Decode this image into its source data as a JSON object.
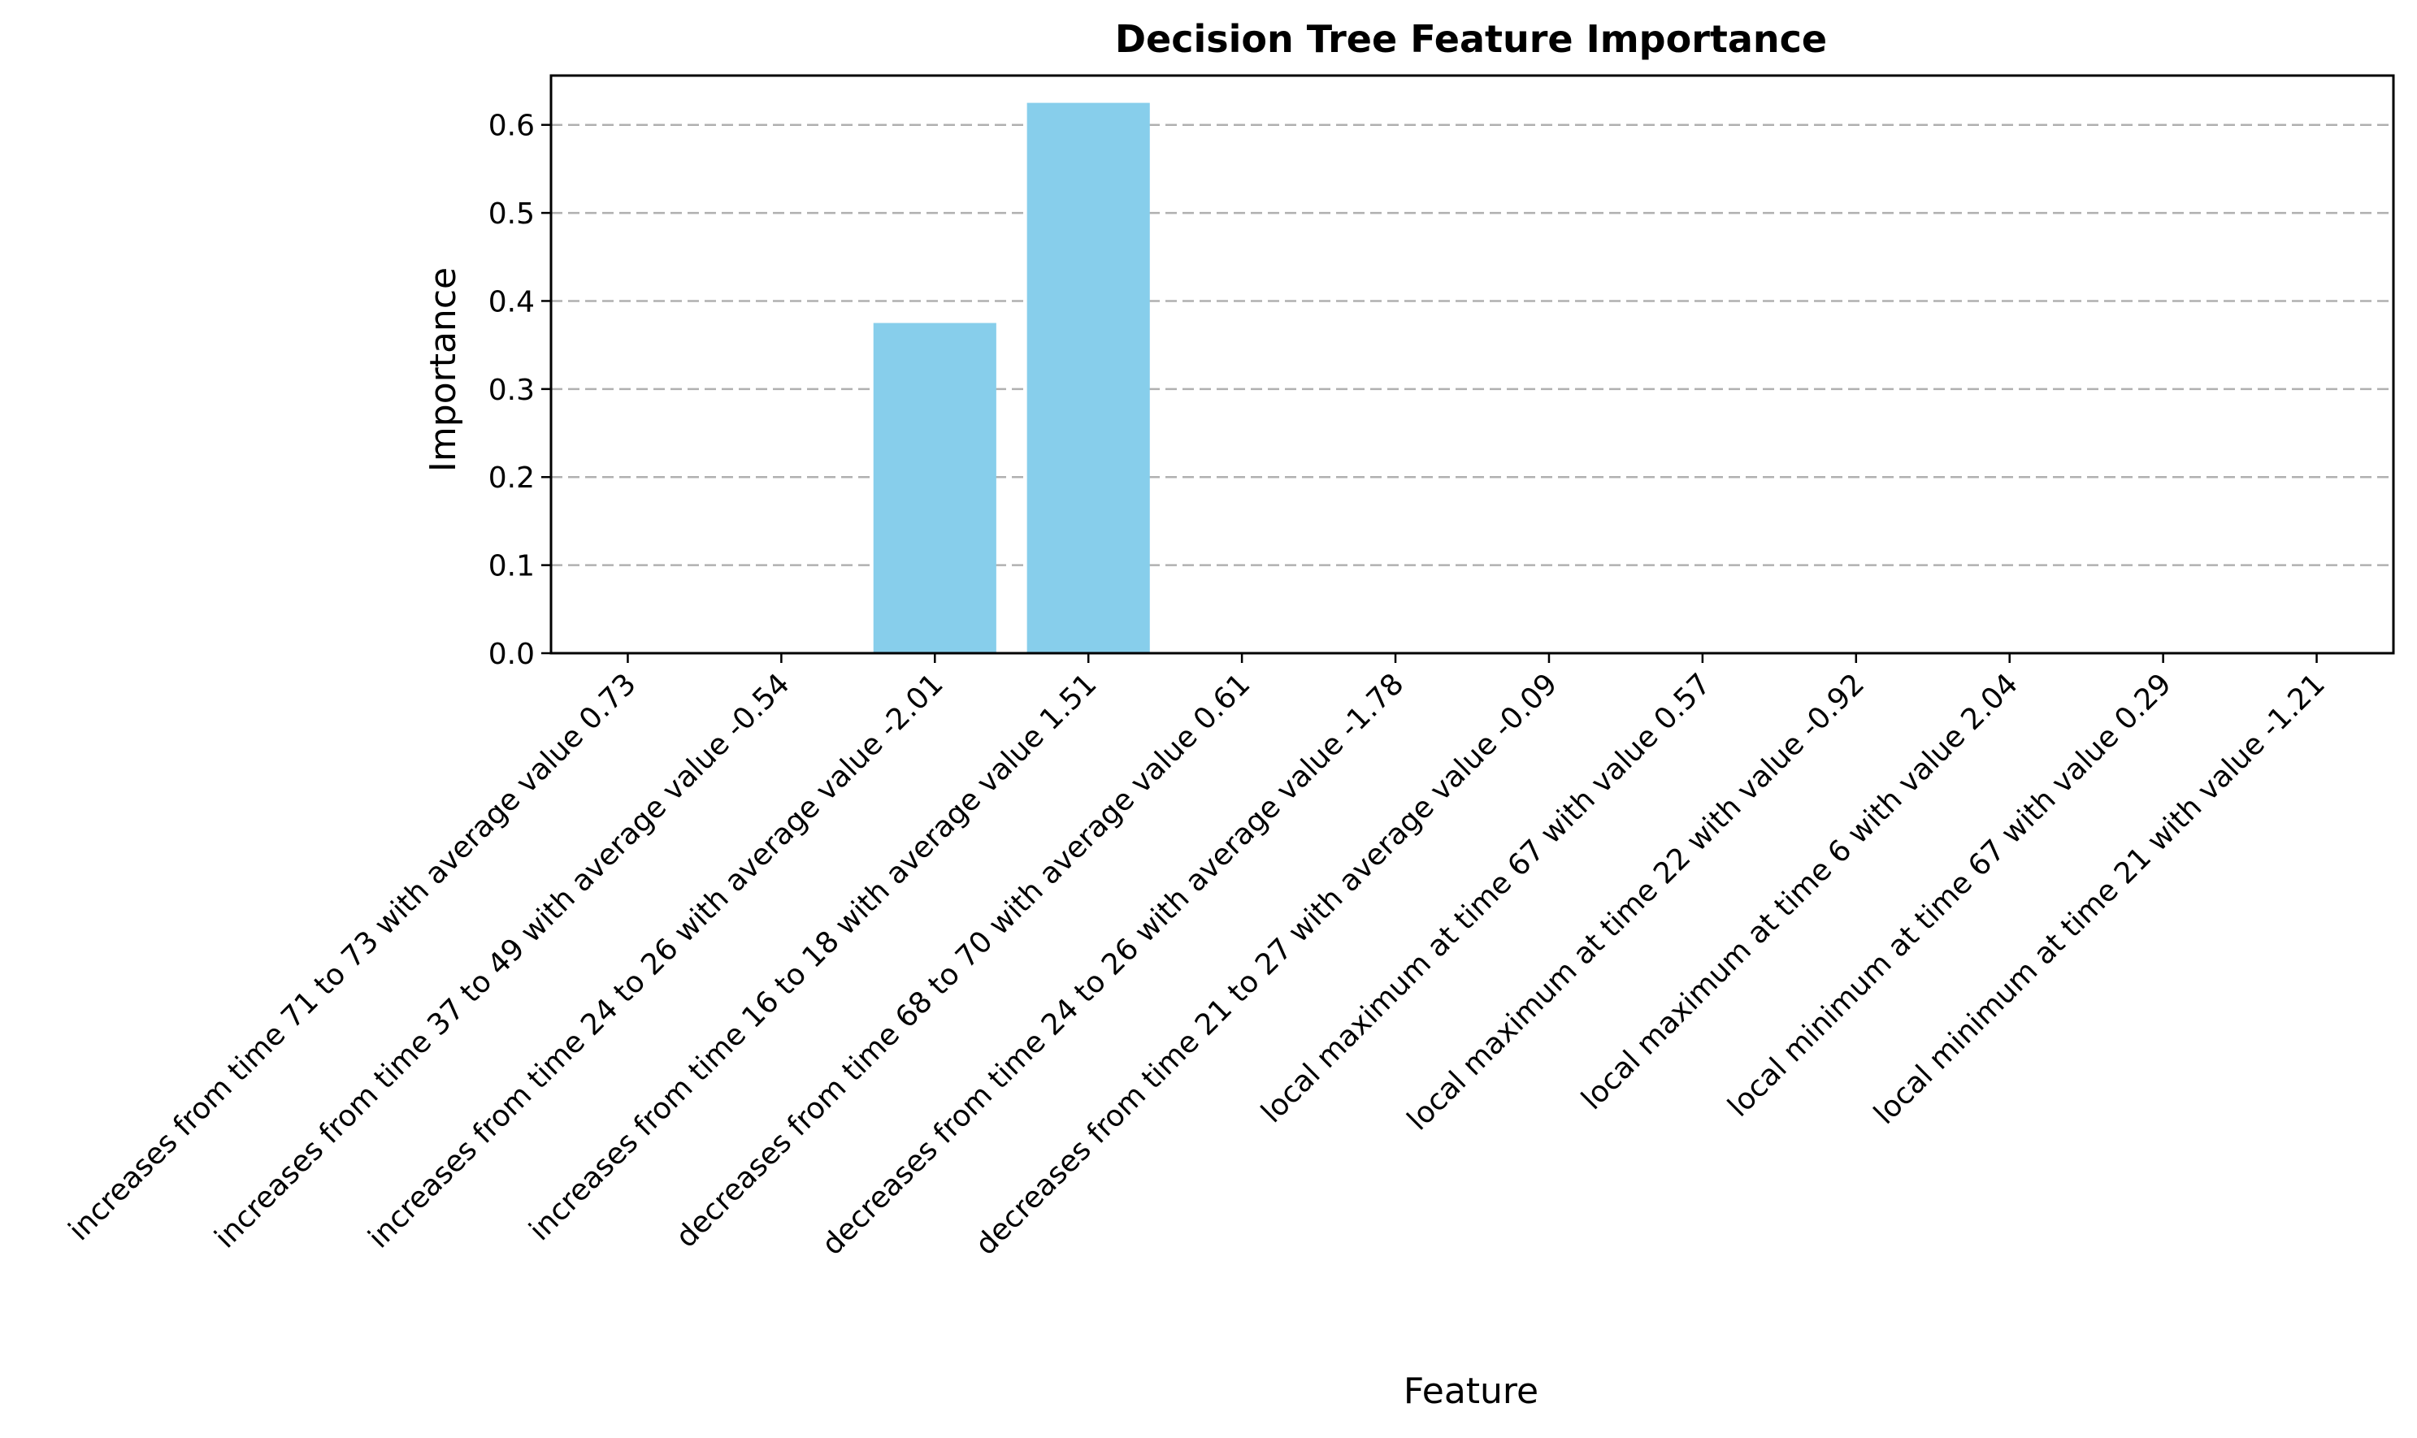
{
  "chart_data": {
    "type": "bar",
    "title": "Decision Tree Feature Importance",
    "xlabel": "Feature",
    "ylabel": "Importance",
    "ylim": [
      0,
      0.656
    ],
    "yticks": [
      0.0,
      0.1,
      0.2,
      0.3,
      0.4,
      0.5,
      0.6
    ],
    "grid": "y-dashed",
    "bar_color": "#87CEEB",
    "categories": [
      "increases from time 71 to 73 with average value 0.73",
      "increases from time 37 to 49 with average value -0.54",
      "increases from time 24 to 26 with average value -2.01",
      "increases from time 16 to 18 with average value 1.51",
      "decreases from time 68 to 70 with average value 0.61",
      "decreases from time 24 to 26 with average value -1.78",
      "decreases from time 21 to 27 with average value -0.09",
      "local maximum at time 67 with value 0.57",
      "local maximum at time 22 with value -0.92",
      "local maximum at time 6 with value 2.04",
      "local minimum at time 67 with value 0.29",
      "local minimum at time 21 with value -1.21"
    ],
    "values": [
      0,
      0,
      0.375,
      0.625,
      0,
      0,
      0,
      0,
      0,
      0,
      0,
      0
    ]
  }
}
